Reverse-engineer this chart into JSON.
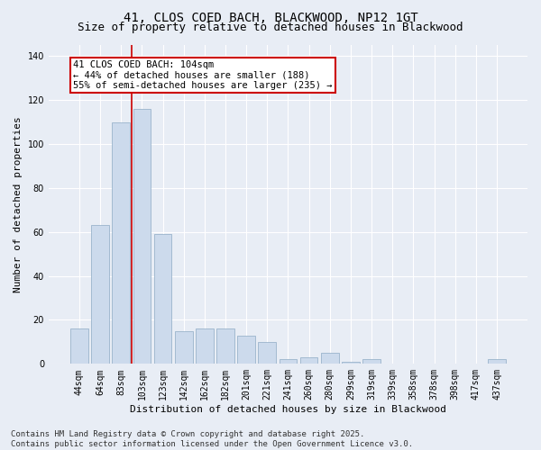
{
  "title_line1": "41, CLOS COED BACH, BLACKWOOD, NP12 1GT",
  "title_line2": "Size of property relative to detached houses in Blackwood",
  "xlabel": "Distribution of detached houses by size in Blackwood",
  "ylabel": "Number of detached properties",
  "categories": [
    "44sqm",
    "64sqm",
    "83sqm",
    "103sqm",
    "123sqm",
    "142sqm",
    "162sqm",
    "182sqm",
    "201sqm",
    "221sqm",
    "241sqm",
    "260sqm",
    "280sqm",
    "299sqm",
    "319sqm",
    "339sqm",
    "358sqm",
    "378sqm",
    "398sqm",
    "417sqm",
    "437sqm"
  ],
  "values": [
    16,
    63,
    110,
    116,
    59,
    15,
    16,
    16,
    13,
    10,
    2,
    3,
    5,
    1,
    2,
    0,
    0,
    0,
    0,
    0,
    2
  ],
  "bar_color": "#ccdaec",
  "bar_edge_color": "#9ab4cc",
  "bar_width": 0.85,
  "vline_x": 2.5,
  "annotation_text": "41 CLOS COED BACH: 104sqm\n← 44% of detached houses are smaller (188)\n55% of semi-detached houses are larger (235) →",
  "annotation_box_color": "#ffffff",
  "annotation_box_edge_color": "#cc0000",
  "vline_color": "#cc0000",
  "ylim": [
    0,
    145
  ],
  "yticks": [
    0,
    20,
    40,
    60,
    80,
    100,
    120,
    140
  ],
  "bg_color": "#e8edf5",
  "plot_bg_color": "#e8edf5",
  "grid_color": "#ffffff",
  "footer_text": "Contains HM Land Registry data © Crown copyright and database right 2025.\nContains public sector information licensed under the Open Government Licence v3.0.",
  "title_fontsize": 10,
  "subtitle_fontsize": 9,
  "axis_label_fontsize": 8,
  "tick_fontsize": 7,
  "annotation_fontsize": 7.5,
  "footer_fontsize": 6.5
}
